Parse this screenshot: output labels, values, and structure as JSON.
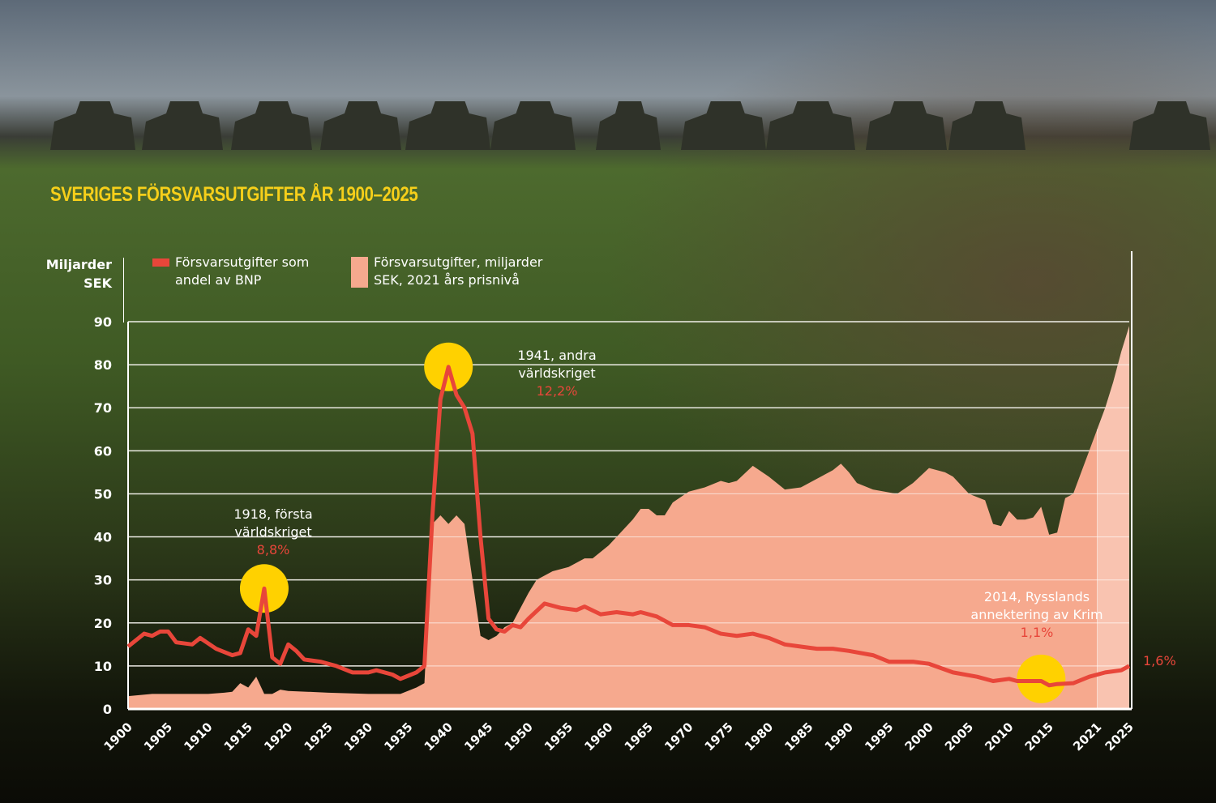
{
  "chart_data": {
    "type": "area+line",
    "title": "SVERIGES FÖRSVARSUTGIFTER ÅR 1900–2025",
    "ylabel": "Miljarder SEK",
    "ylabel_lines": [
      "Miljarder",
      "SEK"
    ],
    "ylim": [
      0,
      90
    ],
    "yticks": [
      "0",
      "10",
      "20",
      "30",
      "40",
      "50",
      "60",
      "70",
      "80",
      "90"
    ],
    "xlim": [
      1900,
      2025
    ],
    "xticks": [
      "1900",
      "1905",
      "1910",
      "1915",
      "1920",
      "1925",
      "1930",
      "1935",
      "1940",
      "1945",
      "1950",
      "1955",
      "1960",
      "1965",
      "1970",
      "1975",
      "1980",
      "1985",
      "1990",
      "1995",
      "2000",
      "2005",
      "2010",
      "2015",
      "2021",
      "2025"
    ],
    "grid": true,
    "legend": {
      "placement": "top",
      "line": [
        "Försvarsutgifter som",
        "andel av BNP"
      ],
      "area": [
        "Försvarsutgifter, miljarder",
        "SEK, 2021 års prisnivå"
      ]
    },
    "highlight_from_year": 2021,
    "series": [
      {
        "name": "Försvarsutgifter, miljarder SEK, 2021 års prisnivå",
        "kind": "area",
        "color": "#f6a98e",
        "points": [
          [
            1900,
            3
          ],
          [
            1903,
            3.5
          ],
          [
            1905,
            3.5
          ],
          [
            1908,
            3.5
          ],
          [
            1910,
            3.5
          ],
          [
            1912,
            3.8
          ],
          [
            1913,
            4
          ],
          [
            1914,
            6
          ],
          [
            1915,
            5
          ],
          [
            1916,
            7.5
          ],
          [
            1917,
            3.5
          ],
          [
            1918,
            3.5
          ],
          [
            1919,
            4.5
          ],
          [
            1920,
            4.2
          ],
          [
            1925,
            3.8
          ],
          [
            1930,
            3.5
          ],
          [
            1934,
            3.5
          ],
          [
            1936,
            5
          ],
          [
            1937,
            6
          ],
          [
            1938,
            43
          ],
          [
            1939,
            45
          ],
          [
            1940,
            43
          ],
          [
            1941,
            45
          ],
          [
            1942,
            43
          ],
          [
            1943,
            30
          ],
          [
            1944,
            17
          ],
          [
            1945,
            16
          ],
          [
            1946,
            17
          ],
          [
            1947,
            19
          ],
          [
            1948,
            20
          ],
          [
            1950,
            27
          ],
          [
            1951,
            30
          ],
          [
            1953,
            32
          ],
          [
            1955,
            33
          ],
          [
            1957,
            35
          ],
          [
            1958,
            35
          ],
          [
            1960,
            38
          ],
          [
            1963,
            44
          ],
          [
            1964,
            46.5
          ],
          [
            1965,
            46.5
          ],
          [
            1966,
            45
          ],
          [
            1967,
            45
          ],
          [
            1968,
            48
          ],
          [
            1970,
            50.5
          ],
          [
            1972,
            51.5
          ],
          [
            1974,
            53
          ],
          [
            1975,
            52.5
          ],
          [
            1976,
            53
          ],
          [
            1978,
            56.5
          ],
          [
            1980,
            54
          ],
          [
            1982,
            51
          ],
          [
            1984,
            51.5
          ],
          [
            1986,
            53.5
          ],
          [
            1988,
            55.5
          ],
          [
            1989,
            57
          ],
          [
            1990,
            55
          ],
          [
            1991,
            52.5
          ],
          [
            1993,
            51
          ],
          [
            1996,
            50
          ],
          [
            1998,
            52.5
          ],
          [
            2000,
            56
          ],
          [
            2002,
            55
          ],
          [
            2003,
            54
          ],
          [
            2005,
            50
          ],
          [
            2007,
            48.5
          ],
          [
            2008,
            43
          ],
          [
            2009,
            42.5
          ],
          [
            2010,
            46
          ],
          [
            2011,
            44
          ],
          [
            2012,
            44
          ],
          [
            2013,
            44.5
          ],
          [
            2014,
            47
          ],
          [
            2015,
            40.5
          ],
          [
            2016,
            41
          ],
          [
            2017,
            49
          ],
          [
            2018,
            50
          ],
          [
            2019,
            55
          ],
          [
            2020,
            60
          ],
          [
            2021,
            65
          ],
          [
            2022,
            70
          ],
          [
            2023,
            76
          ],
          [
            2024,
            83
          ],
          [
            2025,
            89
          ]
        ]
      },
      {
        "name": "Försvarsutgifter som andel av BNP",
        "kind": "line",
        "color": "#e8463a",
        "points": [
          [
            1900,
            14.5
          ],
          [
            1902,
            17.5
          ],
          [
            1903,
            17
          ],
          [
            1904,
            18
          ],
          [
            1905,
            18
          ],
          [
            1906,
            15.5
          ],
          [
            1908,
            15
          ],
          [
            1909,
            16.5
          ],
          [
            1911,
            14
          ],
          [
            1913,
            12.5
          ],
          [
            1914,
            13
          ],
          [
            1915,
            18.5
          ],
          [
            1916,
            17
          ],
          [
            1917,
            28
          ],
          [
            1918,
            12
          ],
          [
            1919,
            10.5
          ],
          [
            1920,
            15
          ],
          [
            1921,
            13.5
          ],
          [
            1922,
            11.5
          ],
          [
            1924,
            11
          ],
          [
            1926,
            10
          ],
          [
            1928,
            8.5
          ],
          [
            1930,
            8.5
          ],
          [
            1931,
            9
          ],
          [
            1933,
            8
          ],
          [
            1934,
            7
          ],
          [
            1936,
            8.5
          ],
          [
            1937,
            10
          ],
          [
            1938,
            45
          ],
          [
            1939,
            72
          ],
          [
            1940,
            79.5
          ],
          [
            1941,
            73
          ],
          [
            1942,
            70
          ],
          [
            1943,
            64
          ],
          [
            1944,
            40
          ],
          [
            1945,
            21
          ],
          [
            1946,
            18.5
          ],
          [
            1947,
            18
          ],
          [
            1948,
            19.5
          ],
          [
            1949,
            19
          ],
          [
            1950,
            21
          ],
          [
            1952,
            24.5
          ],
          [
            1954,
            23.5
          ],
          [
            1956,
            23
          ],
          [
            1957,
            23.8
          ],
          [
            1959,
            22
          ],
          [
            1961,
            22.5
          ],
          [
            1963,
            22
          ],
          [
            1964,
            22.5
          ],
          [
            1966,
            21.5
          ],
          [
            1968,
            19.5
          ],
          [
            1970,
            19.5
          ],
          [
            1972,
            19
          ],
          [
            1974,
            17.5
          ],
          [
            1976,
            17
          ],
          [
            1978,
            17.5
          ],
          [
            1980,
            16.5
          ],
          [
            1982,
            15
          ],
          [
            1984,
            14.5
          ],
          [
            1986,
            14
          ],
          [
            1988,
            14
          ],
          [
            1990,
            13.5
          ],
          [
            1993,
            12.5
          ],
          [
            1995,
            11
          ],
          [
            1998,
            11
          ],
          [
            2000,
            10.5
          ],
          [
            2003,
            8.5
          ],
          [
            2006,
            7.5
          ],
          [
            2008,
            6.5
          ],
          [
            2010,
            7
          ],
          [
            2011,
            6.5
          ],
          [
            2013,
            6.5
          ],
          [
            2014,
            6.5
          ],
          [
            2015,
            5.5
          ],
          [
            2016,
            5.8
          ],
          [
            2018,
            6
          ],
          [
            2020,
            7.5
          ],
          [
            2022,
            8.5
          ],
          [
            2024,
            9
          ],
          [
            2025,
            10
          ]
        ]
      }
    ],
    "annotations": [
      {
        "year": 1917,
        "y": 28,
        "lines": [
          "1918, första",
          "världskriget"
        ],
        "value": "8,8%"
      },
      {
        "year": 1940,
        "y": 79.5,
        "lines": [
          "1941, andra",
          "världskriget"
        ],
        "value": "12,2%"
      },
      {
        "year": 2014,
        "y": 7,
        "lines": [
          "2014, Rysslands",
          "annektering av Krim"
        ],
        "value": "1,1%"
      }
    ],
    "end_label": "1,6%",
    "marker_color": "#ffd100",
    "title_color": "#f6cf1a"
  }
}
